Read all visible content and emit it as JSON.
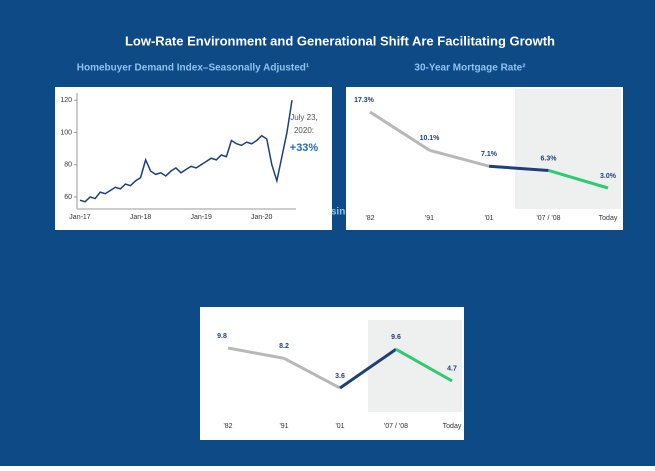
{
  "title": "Low-Rate Environment and Generational Shift Are Facilitating Growth",
  "chart_data": [
    {
      "type": "line",
      "title": "Homebuyer Demand Index–Seasonally Adjusted¹",
      "categories": [
        "Jan-17",
        null,
        null,
        null,
        null,
        null,
        null,
        null,
        null,
        null,
        null,
        null,
        "Jan-18",
        null,
        null,
        null,
        null,
        null,
        null,
        null,
        null,
        null,
        null,
        null,
        "Jan-19",
        null,
        null,
        null,
        null,
        null,
        null,
        null,
        null,
        null,
        null,
        null,
        "Jan-20",
        null,
        null,
        null,
        null,
        null,
        null
      ],
      "values": [
        58,
        57,
        60,
        59,
        63,
        62,
        64,
        66,
        65,
        68,
        67,
        70,
        72,
        83,
        76,
        74,
        75,
        73,
        76,
        78,
        75,
        77,
        79,
        78,
        80,
        82,
        84,
        83,
        86,
        85,
        95,
        93,
        92,
        94,
        93,
        95,
        98,
        96,
        80,
        70,
        85,
        100,
        120
      ],
      "color": "#1f3f7a",
      "ylim": [
        55,
        122
      ],
      "yticks": [
        60,
        80,
        100,
        120
      ],
      "annotations": [
        "July 23,",
        "2020:",
        "+33%"
      ]
    },
    {
      "type": "segments",
      "title": "30-Year Mortgage Rate²",
      "categories": [
        "'82",
        "'91",
        "'01",
        "'07 / '08",
        "Today"
      ],
      "values": [
        17.3,
        10.1,
        7.1,
        6.3,
        3.0
      ],
      "value_labels": [
        "17.3%",
        "10.1%",
        "7.1%",
        "6.3%",
        "3.0%"
      ],
      "segment_colors": [
        "#b8b8b8",
        "#b8b8b8",
        "#1f3f7a",
        "#2ecc71"
      ]
    },
    {
      "type": "segments",
      "title": "Months Housing Supply³",
      "categories": [
        "'82",
        "'91",
        "'01",
        "'07 / '08",
        "Today"
      ],
      "values": [
        9.8,
        8.2,
        3.6,
        9.6,
        4.7
      ],
      "segment_colors": [
        "#b8b8b8",
        "#b8b8b8",
        "#1f3f7a",
        "#2ecc71"
      ]
    }
  ]
}
